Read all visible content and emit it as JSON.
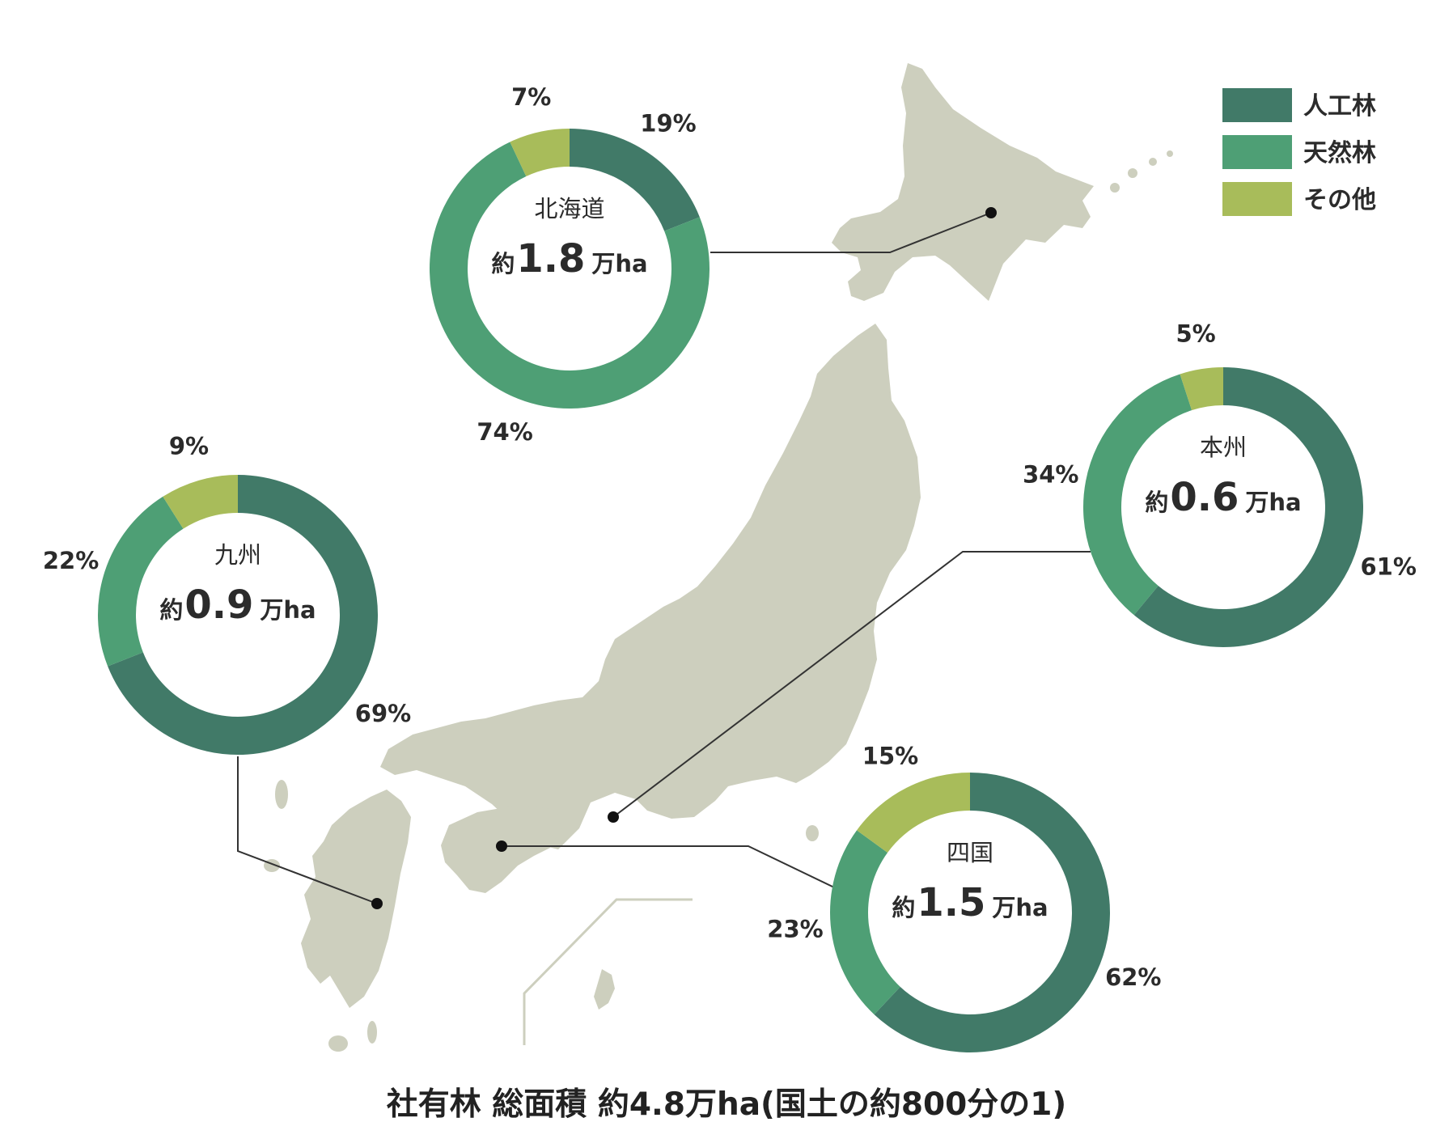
{
  "caption": "社有林 総面積 約4.8万ha(国土の約800分の1)",
  "chart_data": {
    "type": "pie",
    "style": "donut",
    "categories": [
      "人工林",
      "天然林",
      "その他"
    ],
    "colors": [
      "#417A68",
      "#4E9F75",
      "#A8BC5A"
    ],
    "legend_position": "top-right",
    "map_color": "#CDCFBE",
    "regions": [
      {
        "id": "hokkaido",
        "name": "北海道",
        "prefix": "約",
        "value": "1.8",
        "unit": "万ha",
        "values": [
          19,
          74,
          7
        ]
      },
      {
        "id": "honshu",
        "name": "本州",
        "prefix": "約",
        "value": "0.6",
        "unit": "万ha",
        "values": [
          61,
          34,
          5
        ]
      },
      {
        "id": "kyushu",
        "name": "九州",
        "prefix": "約",
        "value": "0.9",
        "unit": "万ha",
        "values": [
          69,
          22,
          9
        ]
      },
      {
        "id": "shikoku",
        "name": "四国",
        "prefix": "約",
        "value": "1.5",
        "unit": "万ha",
        "values": [
          62,
          23,
          15
        ]
      }
    ]
  }
}
